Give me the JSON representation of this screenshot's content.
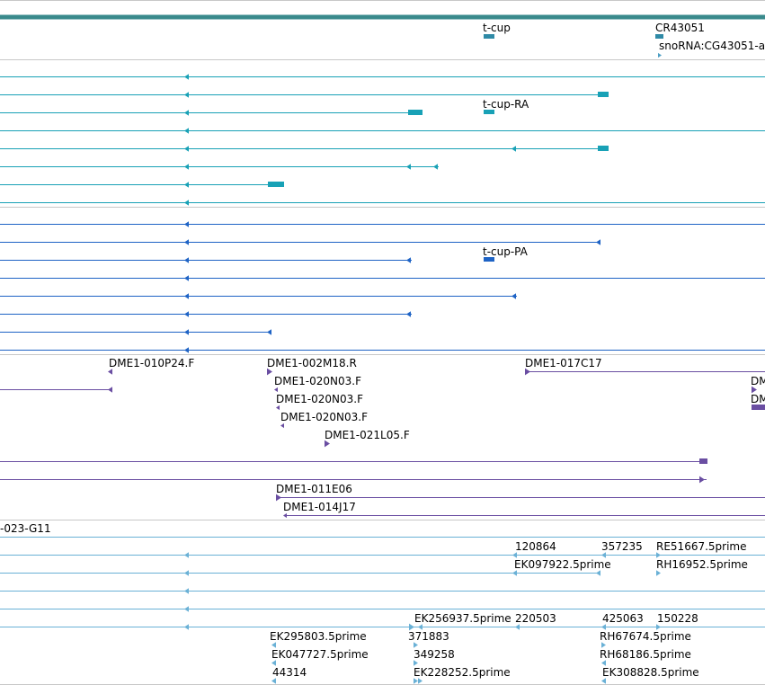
{
  "colors": {
    "teal_bar": "#3a8a8c",
    "separator": "#c8c8c8",
    "gene": "#2f8aa6",
    "ncrna": "#4e9fc4",
    "mrna": "#18a1b6",
    "protein": "#1e63c5",
    "clone": "#6a4ea2",
    "est": "#6ab1d6",
    "label": "#000000"
  },
  "tracks": {
    "gene": {
      "labels": [
        "t-cup",
        "CR43051",
        "snoRNA:CG43051-a"
      ]
    },
    "transcripts": {
      "labels": [
        "t-cup-RA"
      ]
    },
    "polypeptides": {
      "labels": [
        "t-cup-PA"
      ]
    },
    "clones": {
      "labels": [
        "DME1-010P24.F",
        "DME1-002M18.R",
        "DME1-017C17",
        "DME1-020N03.F",
        "DME1-020N03.F",
        "DME1-020N03.F",
        "DME1-021L05.F",
        "DME1-011E06",
        "DME1-014J17",
        "DM",
        "DM"
      ]
    },
    "ests": {
      "labels": [
        "-023-G11",
        "120864",
        "357235",
        "RE51667.5prime",
        "EK097922.5prime",
        "RH16952.5prime",
        "EK256937.5prime",
        "220503",
        "425063",
        "150228",
        "EK295803.5prime",
        "371883",
        "RH67674.5prime",
        "EK047727.5prime",
        "349258",
        "RH68186.5prime",
        "44314",
        "EK228252.5prime",
        "EK308828.5prime"
      ]
    }
  }
}
